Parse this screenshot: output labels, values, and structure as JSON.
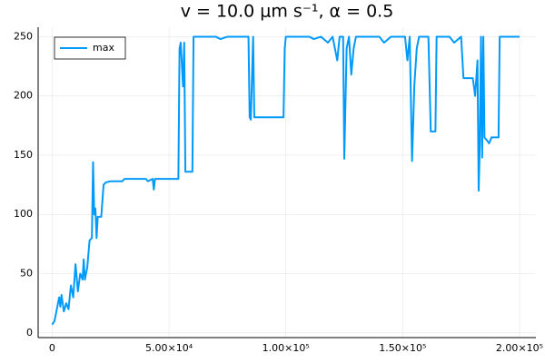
{
  "chart_data": {
    "type": "line",
    "title": "v = 10.0 μm s⁻¹, α = 0.5",
    "x": [
      0,
      1000,
      2000,
      3000,
      3500,
      4000,
      5000,
      6000,
      7000,
      8000,
      9000,
      10000,
      11000,
      12000,
      13000,
      13500,
      14000,
      15000,
      16000,
      17000,
      17500,
      18000,
      18500,
      19000,
      19500,
      21000,
      22000,
      23000,
      25000,
      30000,
      31000,
      40000,
      41000,
      43000,
      43500,
      44000,
      54000,
      54500,
      55000,
      56000,
      56500,
      57000,
      60000,
      60500,
      70000,
      72000,
      75000,
      84000,
      84500,
      85000,
      86000,
      86500,
      99000,
      99500,
      100000,
      110000,
      112000,
      115000,
      118000,
      120000,
      122000,
      123000,
      124500,
      125000,
      126000,
      127000,
      128000,
      129000,
      130000,
      140000,
      142000,
      145000,
      151000,
      152000,
      153000,
      154000,
      155000,
      156000,
      157000,
      161000,
      162000,
      164000,
      164500,
      170000,
      172000,
      175000,
      176000,
      180000,
      181000,
      182000,
      182500,
      183000,
      183500,
      184000,
      184500,
      185000,
      187000,
      188000,
      191000,
      191500,
      200000
    ],
    "series": [
      {
        "name": "max",
        "color": "#009afa",
        "values": [
          7,
          10,
          20,
          30,
          22,
          32,
          18,
          25,
          20,
          40,
          30,
          58,
          35,
          50,
          45,
          62,
          45,
          55,
          78,
          80,
          144,
          100,
          105,
          80,
          98,
          98,
          125,
          127,
          128,
          128,
          130,
          130,
          128,
          130,
          121,
          130,
          130,
          240,
          245,
          208,
          245,
          136,
          136,
          250,
          250,
          248,
          250,
          250,
          182,
          180,
          250,
          182,
          182,
          240,
          250,
          250,
          248,
          250,
          245,
          250,
          230,
          250,
          250,
          147,
          240,
          250,
          218,
          240,
          250,
          250,
          245,
          250,
          250,
          230,
          250,
          145,
          210,
          240,
          250,
          250,
          170,
          170,
          250,
          250,
          245,
          250,
          215,
          215,
          200,
          230,
          120,
          160,
          250,
          148,
          250,
          165,
          160,
          165,
          165,
          250,
          250
        ]
      }
    ],
    "xlim": [
      -6000,
      207000
    ],
    "ylim": [
      -4,
      258
    ],
    "xticks": [
      0,
      {
        "value": 50000,
        "label": "5.00×10⁴"
      },
      {
        "value": 100000,
        "label": "1.00×10⁵"
      },
      {
        "value": 150000,
        "label": "1.50×10⁵"
      },
      {
        "value": 200000,
        "label": "2.00×10⁵"
      }
    ],
    "yticks": [
      0,
      50,
      100,
      150,
      200,
      250
    ],
    "grid": true,
    "legend": "top-left"
  }
}
